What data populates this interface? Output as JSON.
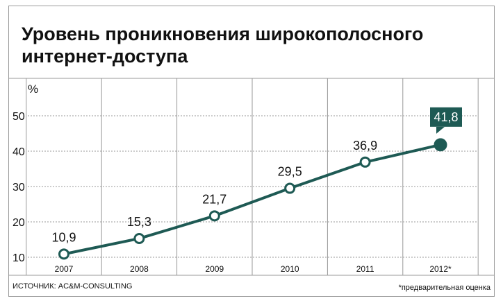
{
  "chart_data": {
    "type": "line",
    "title_lines": [
      "Уровень проникновения широкополосного",
      "интернет-доступа"
    ],
    "ylabel": "%",
    "xlabel": "",
    "categories": [
      "2007",
      "2008",
      "2009",
      "2010",
      "2011",
      "2012*"
    ],
    "series": [
      {
        "values": [
          10.9,
          15.3,
          21.7,
          29.5,
          36.9,
          41.8
        ],
        "labels": [
          "10,9",
          "15,3",
          "21,7",
          "29,5",
          "36,9",
          "41,8"
        ]
      }
    ],
    "yticks": [
      10,
      20,
      30,
      40,
      50
    ],
    "ylim": [
      10,
      50
    ],
    "grid": true,
    "highlighted_point_index": 5,
    "line_color": "#1e5a54",
    "highlight_color": "#1e5a54",
    "grid_color": "#999999"
  },
  "footer": {
    "source": "ИСТОЧНИК: AC&M-CONSULTING",
    "note": "*предварительная оценка"
  }
}
